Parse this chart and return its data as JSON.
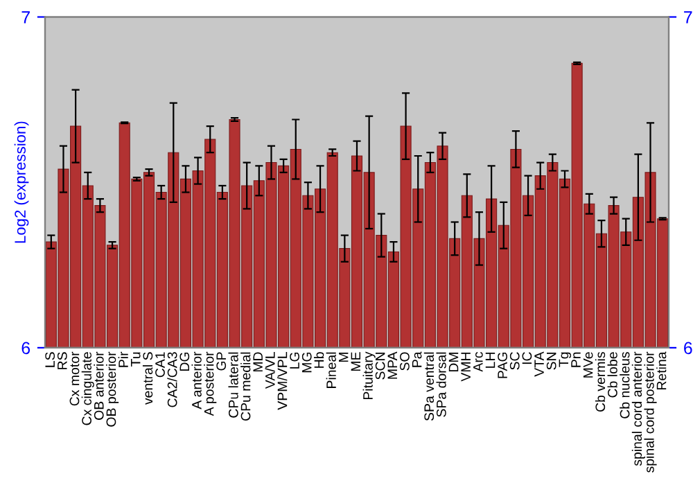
{
  "chart_data": {
    "type": "bar",
    "ylabel": "Log2 (expression)",
    "categories": [
      "LS",
      "RS",
      "Cx motor",
      "Cx cingulate",
      "OB anterior",
      "OB posterior",
      "Pir",
      "Tu",
      "ventral S",
      "CA1",
      "CA2/CA3",
      "DG",
      "A anterior",
      "A posterior",
      "GP",
      "CPu lateral",
      "CPu medial",
      "MD",
      "VA/VL",
      "VPM/VPL",
      "LG",
      "MG",
      "Hb",
      "Pineal",
      "M",
      "ME",
      "Pituitary",
      "SCN",
      "MPA",
      "SO",
      "Pa",
      "SPa ventral",
      "SPa dorsal",
      "DM",
      "VMH",
      "Arc",
      "LH",
      "PAG",
      "SC",
      "IC",
      "VTA",
      "SN",
      "Tg",
      "Pn",
      "MVe",
      "Cb vermis",
      "Cb lobe",
      "Cb nucleus",
      "spinal cord anterior",
      "spinal cord posterior",
      "Retina"
    ],
    "values": [
      6.32,
      6.54,
      6.67,
      6.49,
      6.43,
      6.31,
      6.68,
      6.51,
      6.53,
      6.47,
      6.59,
      6.51,
      6.535,
      6.63,
      6.47,
      6.69,
      6.49,
      6.505,
      6.56,
      6.55,
      6.6,
      6.46,
      6.48,
      6.59,
      6.3,
      6.58,
      6.53,
      6.34,
      6.29,
      6.67,
      6.48,
      6.56,
      6.61,
      6.33,
      6.46,
      6.33,
      6.45,
      6.37,
      6.6,
      6.46,
      6.52,
      6.56,
      6.51,
      6.86,
      6.435,
      6.345,
      6.43,
      6.35,
      6.455,
      6.53,
      6.39
    ],
    "errors": [
      0.02,
      0.07,
      0.11,
      0.04,
      0.02,
      0.01,
      0.002,
      0.005,
      0.01,
      0.02,
      0.15,
      0.04,
      0.04,
      0.04,
      0.02,
      0.005,
      0.07,
      0.045,
      0.05,
      0.02,
      0.09,
      0.04,
      0.07,
      0.01,
      0.04,
      0.045,
      0.17,
      0.065,
      0.03,
      0.1,
      0.1,
      0.03,
      0.04,
      0.05,
      0.065,
      0.08,
      0.1,
      0.07,
      0.055,
      0.06,
      0.04,
      0.025,
      0.025,
      0.003,
      0.03,
      0.04,
      0.025,
      0.04,
      0.13,
      0.15,
      0.003
    ],
    "color": "#b23232",
    "ylim": [
      6,
      7
    ],
    "yticks": [
      6,
      7
    ],
    "y2lim": [
      6,
      7
    ],
    "y2ticks": [
      6,
      7
    ],
    "grid": false,
    "legend": false
  }
}
